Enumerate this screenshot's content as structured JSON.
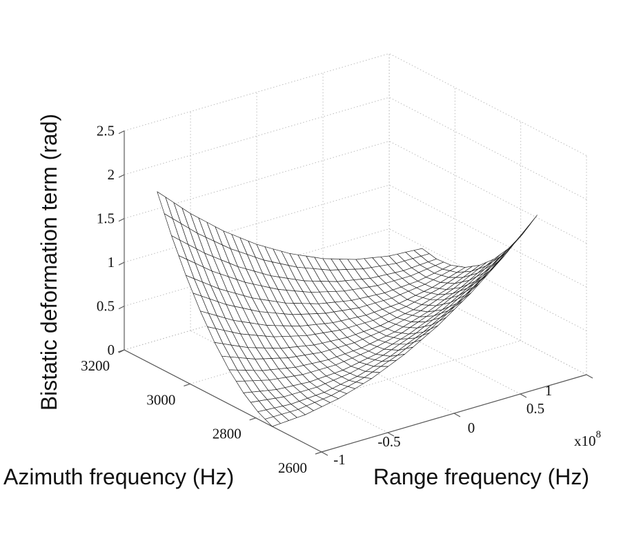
{
  "chart_data": {
    "type": "surface",
    "title": "",
    "xlabel": "Range frequency (Hz)",
    "ylabel": "Azimuth frequency (Hz)",
    "zlabel": "Bistatic deformation term (rad)",
    "x_multiplier": "x10",
    "x_multiplier_exp": "8",
    "xlim": [
      -1,
      1
    ],
    "ylim": [
      2600,
      3200
    ],
    "zlim": [
      0,
      2.5
    ],
    "xticks": [
      "-1",
      "-0.5",
      "0",
      "0.5",
      "1"
    ],
    "xtick_values": [
      -1,
      -0.5,
      0,
      0.5,
      1
    ],
    "yticks": [
      "2600",
      "2800",
      "3000",
      "3200"
    ],
    "ytick_values": [
      2600,
      2800,
      3000,
      3200
    ],
    "zticks": [
      "0",
      "0.5",
      "1",
      "1.5",
      "2",
      "2.5"
    ],
    "ztick_values": [
      0,
      0.5,
      1,
      1.5,
      2,
      2.5
    ],
    "grid": true,
    "surface": {
      "x": [
        -1,
        -0.75,
        -0.5,
        -0.25,
        0,
        0.25,
        0.5,
        0.75,
        1
      ],
      "y": [
        2750,
        2793.75,
        2837.5,
        2881.25,
        2925,
        2968.75,
        3012.5,
        3056.25,
        3100
      ],
      "z": [
        [
          0.0,
          0.024,
          0.096,
          0.215,
          0.383,
          0.598,
          0.861,
          1.171,
          1.53
        ],
        [
          0.083,
          0.059,
          0.083,
          0.155,
          0.274,
          0.441,
          0.656,
          0.919,
          1.23
        ],
        [
          0.213,
          0.141,
          0.118,
          0.141,
          0.213,
          0.333,
          0.5,
          0.715,
          0.978
        ],
        [
          0.391,
          0.272,
          0.2,
          0.176,
          0.2,
          0.272,
          0.391,
          0.559,
          0.774
        ],
        [
          0.618,
          0.45,
          0.331,
          0.259,
          0.235,
          0.259,
          0.331,
          0.45,
          0.618
        ],
        [
          0.892,
          0.676,
          0.509,
          0.389,
          0.318,
          0.294,
          0.318,
          0.389,
          0.509
        ],
        [
          1.214,
          0.951,
          0.736,
          0.568,
          0.449,
          0.377,
          0.353,
          0.377,
          0.449
        ],
        [
          1.582,
          1.272,
          1.009,
          0.794,
          0.626,
          0.507,
          0.435,
          0.411,
          0.435
        ],
        [
          2.0,
          1.641,
          1.331,
          1.068,
          0.853,
          0.685,
          0.565,
          0.494,
          0.47
        ]
      ],
      "mesh_x_samples": 33,
      "mesh_y_samples": 17
    },
    "colors": {
      "mesh": "#222222",
      "face": "#ffffff",
      "grid": "#bbbbbb",
      "axis": "#555555"
    }
  }
}
